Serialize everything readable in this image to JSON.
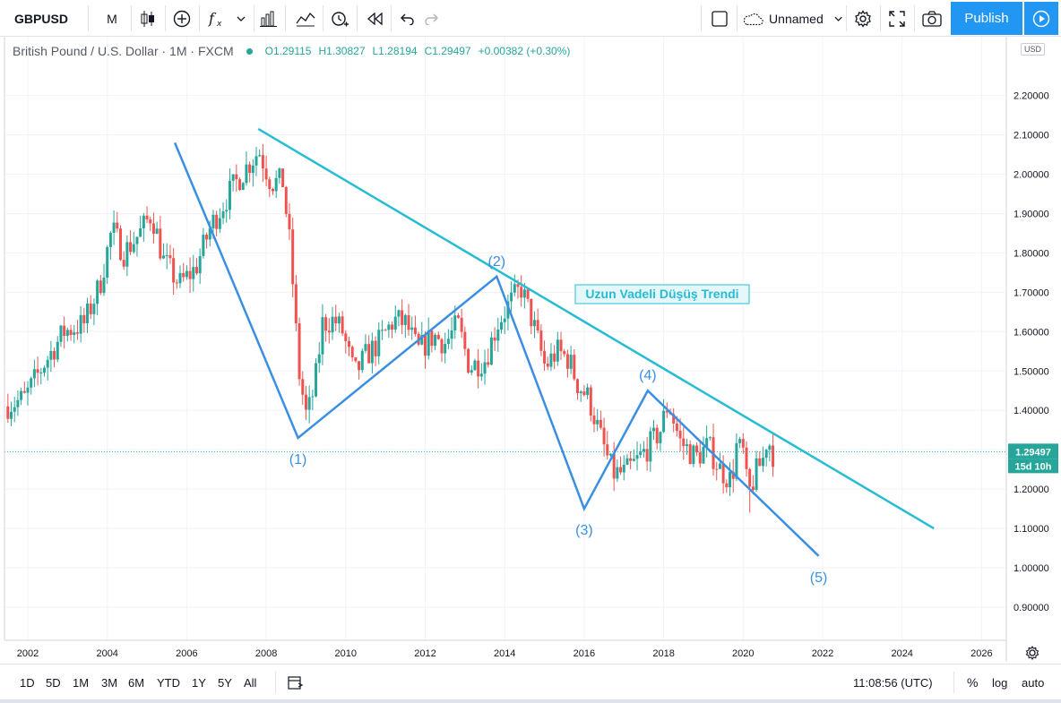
{
  "toolbar": {
    "symbol": "GBPUSD",
    "interval": "M",
    "layout_name": "Unnamed",
    "publish_label": "Publish"
  },
  "legend": {
    "title": "British Pound / U.S. Dollar · 1M · FXCM",
    "open": "O1.29115",
    "high": "H1.30827",
    "low": "L1.28194",
    "close": "C1.29497",
    "change": "+0.00382 (+0.30%)"
  },
  "price_axis": {
    "currency": "USD",
    "last_price": "1.29497",
    "countdown": "15d 10h",
    "labels": [
      "0.90000",
      "1.00000",
      "1.10000",
      "1.20000",
      "1.30000",
      "1.40000",
      "1.50000",
      "1.60000",
      "1.70000",
      "1.80000",
      "1.90000",
      "2.00000",
      "2.10000",
      "2.20000"
    ]
  },
  "bottombar": {
    "ranges": [
      "1D",
      "5D",
      "1M",
      "3M",
      "6M",
      "YTD",
      "1Y",
      "5Y",
      "All"
    ],
    "time": "11:08:56 (UTC)",
    "percent": "%",
    "log": "log",
    "auto": "auto"
  },
  "colors": {
    "up": "#26a69a",
    "down": "#ef5350",
    "trend": "#26bcd3",
    "wave": "#3a8fe3",
    "accent": "#2196f3"
  },
  "chart_data": {
    "type": "candlestick",
    "symbol": "GBPUSD",
    "timeframe": "1M",
    "ylim": [
      0.84,
      2.25
    ],
    "xlim": [
      2001.4,
      2026.9
    ],
    "x_ticks": [
      "2002",
      "2004",
      "2006",
      "2008",
      "2010",
      "2012",
      "2014",
      "2016",
      "2018",
      "2020",
      "2022",
      "2024",
      "2026"
    ],
    "y_ticks": [
      0.9,
      1.0,
      1.1,
      1.2,
      1.3,
      1.4,
      1.5,
      1.6,
      1.7,
      1.8,
      1.9,
      2.0,
      2.1,
      2.2
    ],
    "last_close": 1.29497,
    "price_path": [
      [
        2001.5,
        1.41
      ],
      [
        2002.0,
        1.43
      ],
      [
        2002.5,
        1.52
      ],
      [
        2003.0,
        1.6
      ],
      [
        2003.5,
        1.62
      ],
      [
        2003.9,
        1.72
      ],
      [
        2004.2,
        1.86
      ],
      [
        2004.5,
        1.8
      ],
      [
        2004.9,
        1.85
      ],
      [
        2005.2,
        1.9
      ],
      [
        2005.5,
        1.78
      ],
      [
        2005.9,
        1.72
      ],
      [
        2006.3,
        1.76
      ],
      [
        2006.7,
        1.87
      ],
      [
        2007.2,
        1.96
      ],
      [
        2007.6,
        2.02
      ],
      [
        2007.9,
        2.06
      ],
      [
        2008.2,
        1.98
      ],
      [
        2008.5,
        1.98
      ],
      [
        2008.7,
        1.8
      ],
      [
        2008.9,
        1.5
      ],
      [
        2009.1,
        1.38
      ],
      [
        2009.3,
        1.46
      ],
      [
        2009.5,
        1.62
      ],
      [
        2009.8,
        1.63
      ],
      [
        2010.0,
        1.6
      ],
      [
        2010.3,
        1.49
      ],
      [
        2010.6,
        1.54
      ],
      [
        2010.9,
        1.57
      ],
      [
        2011.3,
        1.63
      ],
      [
        2011.6,
        1.62
      ],
      [
        2011.9,
        1.55
      ],
      [
        2012.3,
        1.59
      ],
      [
        2012.6,
        1.57
      ],
      [
        2012.9,
        1.62
      ],
      [
        2013.2,
        1.51
      ],
      [
        2013.6,
        1.53
      ],
      [
        2013.9,
        1.62
      ],
      [
        2014.2,
        1.67
      ],
      [
        2014.5,
        1.71
      ],
      [
        2014.8,
        1.62
      ],
      [
        2015.1,
        1.51
      ],
      [
        2015.4,
        1.55
      ],
      [
        2015.7,
        1.53
      ],
      [
        2015.9,
        1.47
      ],
      [
        2016.2,
        1.43
      ],
      [
        2016.5,
        1.33
      ],
      [
        2016.8,
        1.24
      ],
      [
        2017.1,
        1.24
      ],
      [
        2017.4,
        1.27
      ],
      [
        2017.8,
        1.32
      ],
      [
        2018.0,
        1.35
      ],
      [
        2018.2,
        1.42
      ],
      [
        2018.5,
        1.32
      ],
      [
        2018.9,
        1.28
      ],
      [
        2019.2,
        1.31
      ],
      [
        2019.5,
        1.25
      ],
      [
        2019.8,
        1.22
      ],
      [
        2019.9,
        1.31
      ],
      [
        2020.1,
        1.29
      ],
      [
        2020.2,
        1.18
      ],
      [
        2020.4,
        1.24
      ],
      [
        2020.6,
        1.28
      ],
      [
        2020.7,
        1.34
      ],
      [
        2020.8,
        1.29
      ]
    ],
    "extreme_low": [
      2020.2,
      1.14
    ],
    "trend_line": {
      "label": "Uzun Vadeli Düşüş Trendi",
      "points": [
        [
          2007.8,
          2.115
        ],
        [
          2024.8,
          1.1
        ]
      ]
    },
    "wave_lines": [
      {
        "points": [
          [
            2005.7,
            2.08
          ],
          [
            2008.8,
            1.33
          ],
          [
            2013.8,
            1.74
          ],
          [
            2016.0,
            1.15
          ],
          [
            2017.6,
            1.45
          ],
          [
            2021.9,
            1.03
          ]
        ]
      }
    ],
    "wave_labels": [
      {
        "text": "(1)",
        "x": 2008.8,
        "y": 1.33,
        "pos": "below"
      },
      {
        "text": "(2)",
        "x": 2013.8,
        "y": 1.74,
        "pos": "above"
      },
      {
        "text": "(3)",
        "x": 2016.0,
        "y": 1.15,
        "pos": "below"
      },
      {
        "text": "(4)",
        "x": 2017.6,
        "y": 1.45,
        "pos": "above"
      },
      {
        "text": "(5)",
        "x": 2021.9,
        "y": 1.03,
        "pos": "below"
      }
    ]
  }
}
